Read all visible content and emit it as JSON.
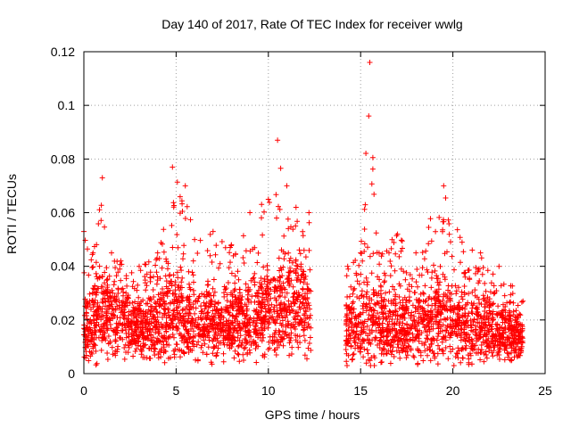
{
  "chart_data": {
    "type": "scatter",
    "title": "Day 140 of 2017, Rate Of TEC Index for receiver wwlg",
    "xlabel": "GPS time / hours",
    "ylabel": "ROTI / TECUs",
    "xlim": [
      0,
      25
    ],
    "ylim": [
      0,
      0.12
    ],
    "xticks": [
      {
        "value": 0,
        "label": "0"
      },
      {
        "value": 5,
        "label": "5"
      },
      {
        "value": 10,
        "label": "10"
      },
      {
        "value": 15,
        "label": "15"
      },
      {
        "value": 20,
        "label": "20"
      },
      {
        "value": 25,
        "label": "25"
      }
    ],
    "yticks": [
      {
        "value": 0,
        "label": "0"
      },
      {
        "value": 0.02,
        "label": "0.02"
      },
      {
        "value": 0.04,
        "label": "0.04"
      },
      {
        "value": 0.06,
        "label": "0.06"
      },
      {
        "value": 0.08,
        "label": "0.08"
      },
      {
        "value": 0.1,
        "label": "0.1"
      },
      {
        "value": 0.12,
        "label": "0.12"
      }
    ],
    "grid": true,
    "marker": "+",
    "color": "#ff0000",
    "series": [
      {
        "name": "ROTI",
        "data_gap": [
          12.3,
          14.2
        ],
        "envelope": [
          {
            "x": 0.0,
            "base": 0.015,
            "spread": 0.012,
            "peak": 0.053
          },
          {
            "x": 0.5,
            "base": 0.018,
            "spread": 0.016,
            "peak": 0.045
          },
          {
            "x": 1.0,
            "base": 0.022,
            "spread": 0.018,
            "peak": 0.073
          },
          {
            "x": 1.5,
            "base": 0.02,
            "spread": 0.017,
            "peak": 0.045
          },
          {
            "x": 2.0,
            "base": 0.018,
            "spread": 0.014,
            "peak": 0.042
          },
          {
            "x": 3.0,
            "base": 0.016,
            "spread": 0.012,
            "peak": 0.04
          },
          {
            "x": 4.0,
            "base": 0.017,
            "spread": 0.014,
            "peak": 0.045
          },
          {
            "x": 4.8,
            "base": 0.022,
            "spread": 0.02,
            "peak": 0.077
          },
          {
            "x": 5.5,
            "base": 0.02,
            "spread": 0.017,
            "peak": 0.07
          },
          {
            "x": 6.0,
            "base": 0.018,
            "spread": 0.014,
            "peak": 0.05
          },
          {
            "x": 7.0,
            "base": 0.018,
            "spread": 0.015,
            "peak": 0.053
          },
          {
            "x": 8.0,
            "base": 0.017,
            "spread": 0.014,
            "peak": 0.048
          },
          {
            "x": 9.0,
            "base": 0.02,
            "spread": 0.017,
            "peak": 0.06
          },
          {
            "x": 10.0,
            "base": 0.022,
            "spread": 0.018,
            "peak": 0.065
          },
          {
            "x": 10.5,
            "base": 0.022,
            "spread": 0.02,
            "peak": 0.087
          },
          {
            "x": 11.0,
            "base": 0.024,
            "spread": 0.02,
            "peak": 0.07
          },
          {
            "x": 11.5,
            "base": 0.025,
            "spread": 0.02,
            "peak": 0.062
          },
          {
            "x": 12.2,
            "base": 0.022,
            "spread": 0.018,
            "peak": 0.06
          },
          {
            "x": 14.3,
            "base": 0.016,
            "spread": 0.014,
            "peak": 0.04
          },
          {
            "x": 15.0,
            "base": 0.018,
            "spread": 0.016,
            "peak": 0.045
          },
          {
            "x": 15.5,
            "base": 0.02,
            "spread": 0.02,
            "peak": 0.116
          },
          {
            "x": 16.0,
            "base": 0.017,
            "spread": 0.015,
            "peak": 0.045
          },
          {
            "x": 17.0,
            "base": 0.016,
            "spread": 0.014,
            "peak": 0.052
          },
          {
            "x": 18.0,
            "base": 0.018,
            "spread": 0.016,
            "peak": 0.045
          },
          {
            "x": 19.5,
            "base": 0.02,
            "spread": 0.018,
            "peak": 0.07
          },
          {
            "x": 20.5,
            "base": 0.018,
            "spread": 0.016,
            "peak": 0.049
          },
          {
            "x": 21.5,
            "base": 0.017,
            "spread": 0.015,
            "peak": 0.045
          },
          {
            "x": 22.5,
            "base": 0.015,
            "spread": 0.012,
            "peak": 0.04
          },
          {
            "x": 23.8,
            "base": 0.013,
            "spread": 0.01,
            "peak": 0.027
          }
        ]
      }
    ]
  }
}
